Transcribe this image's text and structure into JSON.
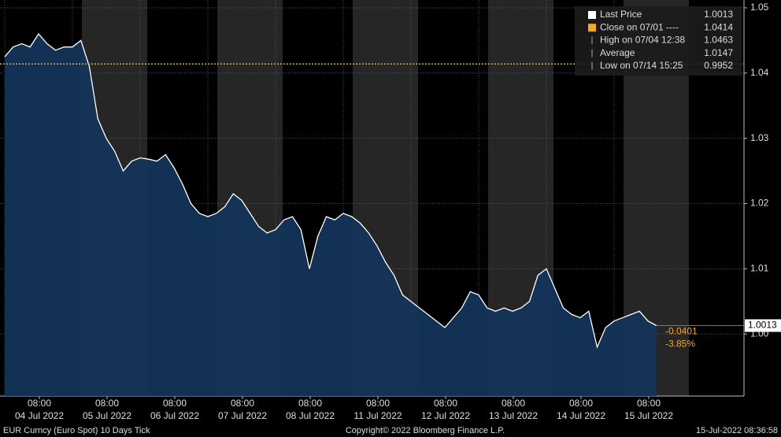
{
  "chart_data": {
    "type": "area",
    "values": [
      1.0425,
      1.044,
      1.0445,
      1.044,
      1.046,
      1.0445,
      1.0435,
      1.044,
      1.044,
      1.045,
      1.041,
      1.033,
      1.03,
      1.028,
      1.025,
      1.0265,
      1.027,
      1.0268,
      1.0265,
      1.0275,
      1.0255,
      1.023,
      1.02,
      1.0185,
      1.018,
      1.0185,
      1.0195,
      1.0215,
      1.0205,
      1.0185,
      1.0165,
      1.0155,
      1.016,
      1.0175,
      1.018,
      1.016,
      1.01,
      1.015,
      1.018,
      1.0175,
      1.0185,
      1.018,
      1.017,
      1.0155,
      1.0135,
      1.011,
      1.009,
      1.006,
      1.005,
      1.004,
      1.003,
      1.002,
      1.001,
      1.0025,
      1.004,
      1.0065,
      1.006,
      1.004,
      1.0035,
      1.004,
      1.0035,
      1.004,
      1.005,
      1.009,
      1.01,
      1.007,
      1.004,
      1.003,
      1.0025,
      1.0035,
      0.998,
      1.001,
      1.002,
      1.0025,
      1.003,
      1.0035,
      1.002,
      1.0013
    ],
    "line_color": "#ffffff",
    "area_color": "#14345a",
    "ylim": [
      0.9905,
      1.0512
    ],
    "yticks": [
      {
        "value": 1,
        "label": "1.00"
      },
      1.01,
      1.02,
      1.03,
      1.04,
      1.05
    ],
    "grid": true,
    "xlabels": [
      {
        "time": "08:00",
        "date": "04 Jul 2022"
      },
      {
        "time": "08:00",
        "date": "05 Jul 2022"
      },
      {
        "time": "08:00",
        "date": "06 Jul 2022"
      },
      {
        "time": "08:00",
        "date": "07 Jul 2022"
      },
      {
        "time": "08:00",
        "date": "08 Jul 2022"
      },
      {
        "time": "08:00",
        "date": "11 Jul 2022"
      },
      {
        "time": "08:00",
        "date": "12 Jul 2022"
      },
      {
        "time": "08:00",
        "date": "13 Jul 2022"
      },
      {
        "time": "08:00",
        "date": "14 Jul 2022"
      },
      {
        "time": "08:00",
        "date": "15 Jul 2022"
      }
    ],
    "legend": [
      {
        "label": "Last Price",
        "value": 1.0013,
        "color": "#ffffff"
      },
      {
        "label": "Close on 07/01 ----",
        "value": 1.0414,
        "color": "#f5a623"
      },
      {
        "label": "High on 07/04 12:38",
        "value": 1.0463,
        "color": "#aaaaaa"
      },
      {
        "label": "Average",
        "value": 1.0147,
        "color": "#aaaaaa"
      },
      {
        "label": "Low on 07/14 15:25",
        "value": 0.9952,
        "color": "#aaaaaa"
      }
    ],
    "close_line": 1.0414,
    "close_color": "#f5a623",
    "last_price": 1.0013,
    "change": "-0.0401",
    "change_pct": "-3.85%",
    "footer": {
      "left": "EUR Curncy (Euro Spot) 10 Days  Tick",
      "center": "Copyright© 2022 Bloomberg Finance L.P.",
      "right": "15-Jul-2022 08:36:58"
    }
  }
}
